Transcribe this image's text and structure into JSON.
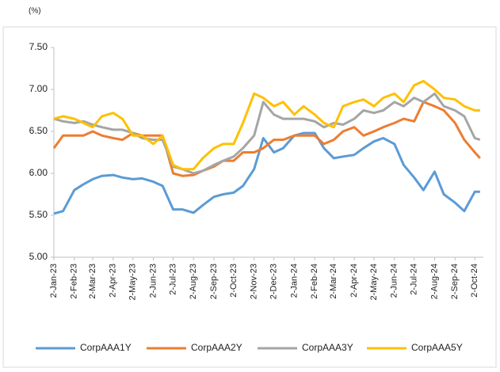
{
  "chart_data": {
    "type": "line",
    "ylabel": "(%)",
    "x": [
      "2-Jan-23",
      "16-Jan-23",
      "2-Feb-23",
      "16-Feb-23",
      "2-Mar-23",
      "16-Mar-23",
      "2-Apr-23",
      "16-Apr-23",
      "2-May-23",
      "16-May-23",
      "2-Jun-23",
      "16-Jun-23",
      "2-Jul-23",
      "16-Jul-23",
      "2-Aug-23",
      "16-Aug-23",
      "2-Sep-23",
      "16-Sep-23",
      "2-Oct-23",
      "16-Oct-23",
      "2-Nov-23",
      "16-Nov-23",
      "2-Dec-23",
      "16-Dec-23",
      "2-Jan-24",
      "16-Jan-24",
      "2-Feb-24",
      "16-Feb-24",
      "2-Mar-24",
      "16-Mar-24",
      "2-Apr-24",
      "16-Apr-24",
      "2-May-24",
      "16-May-24",
      "2-Jun-24",
      "16-Jun-24",
      "2-Jul-24",
      "16-Jul-24",
      "2-Aug-24",
      "16-Aug-24",
      "2-Sep-24",
      "16-Sep-24",
      "2-Oct-24",
      "10-Oct-24"
    ],
    "series": [
      {
        "name": "CorpAAA1Y",
        "color": "#5b9bd5",
        "values": [
          5.52,
          5.55,
          5.8,
          5.87,
          5.93,
          5.97,
          5.98,
          5.95,
          5.93,
          5.94,
          5.9,
          5.85,
          5.57,
          5.57,
          5.53,
          5.62,
          5.72,
          5.75,
          5.77,
          5.85,
          6.05,
          6.42,
          6.25,
          6.3,
          6.45,
          6.48,
          6.48,
          6.3,
          6.18,
          6.2,
          6.22,
          6.3,
          6.38,
          6.42,
          6.35,
          6.1,
          5.95,
          5.8,
          6.02,
          5.75,
          5.65,
          5.55,
          5.78,
          5.78
        ]
      },
      {
        "name": "CorpAAA2Y",
        "color": "#ed7d31",
        "values": [
          6.3,
          6.45,
          6.45,
          6.45,
          6.5,
          6.45,
          6.42,
          6.4,
          6.48,
          6.45,
          6.45,
          6.45,
          6.0,
          5.97,
          5.98,
          6.03,
          6.08,
          6.15,
          6.15,
          6.25,
          6.25,
          6.3,
          6.4,
          6.4,
          6.45,
          6.45,
          6.45,
          6.35,
          6.4,
          6.5,
          6.55,
          6.45,
          6.5,
          6.55,
          6.6,
          6.65,
          6.62,
          6.85,
          6.8,
          6.75,
          6.6,
          6.4,
          6.25,
          6.18
        ]
      },
      {
        "name": "CorpAAA3Y",
        "color": "#a5a5a5",
        "values": [
          6.65,
          6.62,
          6.6,
          6.62,
          6.58,
          6.55,
          6.52,
          6.52,
          6.48,
          6.42,
          6.4,
          6.4,
          6.08,
          6.05,
          6.0,
          6.03,
          6.1,
          6.15,
          6.2,
          6.3,
          6.45,
          6.85,
          6.7,
          6.65,
          6.65,
          6.65,
          6.62,
          6.55,
          6.6,
          6.58,
          6.65,
          6.75,
          6.72,
          6.75,
          6.85,
          6.8,
          6.9,
          6.85,
          6.95,
          6.8,
          6.75,
          6.68,
          6.42,
          6.4
        ]
      },
      {
        "name": "CorpAAA5Y",
        "color": "#ffc000",
        "values": [
          6.65,
          6.68,
          6.65,
          6.6,
          6.55,
          6.68,
          6.72,
          6.65,
          6.45,
          6.45,
          6.35,
          6.45,
          6.1,
          6.05,
          6.05,
          6.18,
          6.3,
          6.35,
          6.35,
          6.6,
          6.95,
          6.9,
          6.8,
          6.85,
          6.7,
          6.8,
          6.7,
          6.6,
          6.55,
          6.8,
          6.85,
          6.88,
          6.8,
          6.9,
          6.95,
          6.85,
          7.05,
          7.1,
          7.0,
          6.9,
          6.88,
          6.8,
          6.75,
          6.75
        ]
      }
    ],
    "xlim": [
      "2-Jan-23",
      "15-Oct-24"
    ],
    "xticks": [
      "2-Jan-23",
      "2-Feb-23",
      "2-Mar-23",
      "2-Apr-23",
      "2-May-23",
      "2-Jun-23",
      "2-Jul-23",
      "2-Aug-23",
      "2-Sep-23",
      "2-Oct-23",
      "2-Nov-23",
      "2-Dec-23",
      "2-Jan-24",
      "2-Feb-24",
      "2-Mar-24",
      "2-Apr-24",
      "2-May-24",
      "2-Jun-24",
      "2-Jul-24",
      "2-Aug-24",
      "2-Sep-24",
      "2-Oct-24"
    ],
    "ylim": [
      5,
      7.5
    ],
    "yticks": [
      {
        "value": 5,
        "label": "5.00"
      },
      {
        "value": 5.5,
        "label": "5.50"
      },
      {
        "value": 6,
        "label": "6.00"
      },
      {
        "value": 6.5,
        "label": "6.50"
      },
      {
        "value": 7,
        "label": "7.00"
      },
      {
        "value": 7.5,
        "label": "7.50"
      }
    ],
    "grid": false,
    "legend": "bottom"
  }
}
